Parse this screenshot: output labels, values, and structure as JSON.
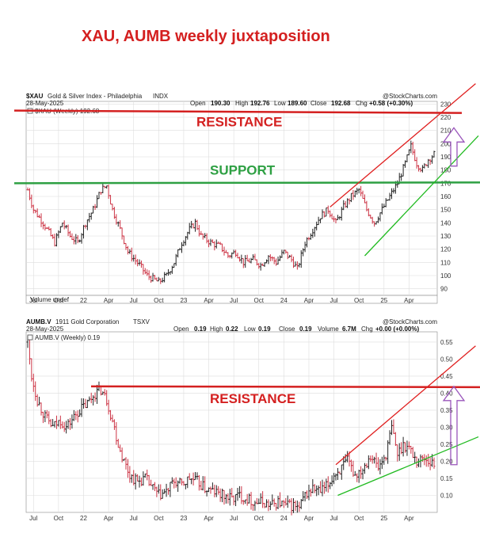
{
  "colors": {
    "red": "#d42020",
    "green": "#2ea043",
    "light_green": "#22bb22",
    "purple": "#9955bb",
    "bar_up": "#222222",
    "bar_down": "#cc3344",
    "grid": "#dddddd"
  },
  "page": {
    "title": "XAU, AUMB weekly juxtaposition"
  },
  "chart_data": [
    {
      "type": "ohlc",
      "symbol": "$XAU",
      "name": "Gold & Silver Index - Philadelphia",
      "exchange": "INDX",
      "date": "28-May-2025",
      "brand": "@StockCharts.com",
      "quote": {
        "open": "190.30",
        "high": "192.76",
        "low": "189.60",
        "close": "192.68",
        "chg": "+0.58 (+0.30%)"
      },
      "quote_labels": {
        "open": "Open",
        "high": "High",
        "low": "Low",
        "close": "Close",
        "chg": "Chg"
      },
      "legend": "$XAU (Weekly) 192.68",
      "volume_label": "Volume undef",
      "ylim": [
        85,
        232
      ],
      "yticks": [
        90,
        100,
        110,
        120,
        130,
        140,
        150,
        160,
        170,
        180,
        190,
        200,
        210,
        220,
        230
      ],
      "xticks": [
        {
          "label": "Jul",
          "week": 3
        },
        {
          "label": "Oct",
          "week": 16
        },
        {
          "label": "22",
          "week": 29
        },
        {
          "label": "Apr",
          "week": 42
        },
        {
          "label": "Jul",
          "week": 55
        },
        {
          "label": "Oct",
          "week": 68
        },
        {
          "label": "23",
          "week": 81
        },
        {
          "label": "Apr",
          "week": 94
        },
        {
          "label": "Jul",
          "week": 107
        },
        {
          "label": "Oct",
          "week": 120
        },
        {
          "label": "24",
          "week": 133
        },
        {
          "label": "Apr",
          "week": 146
        },
        {
          "label": "Jul",
          "week": 159
        },
        {
          "label": "Oct",
          "week": 172
        },
        {
          "label": "25",
          "week": 185
        },
        {
          "label": "Apr",
          "week": 198
        }
      ],
      "weeks": 212,
      "anchors": [
        [
          0,
          165
        ],
        [
          3,
          150
        ],
        [
          8,
          140
        ],
        [
          14,
          125
        ],
        [
          18,
          140
        ],
        [
          22,
          130
        ],
        [
          26,
          125
        ],
        [
          30,
          140
        ],
        [
          34,
          150
        ],
        [
          38,
          165
        ],
        [
          41,
          168
        ],
        [
          44,
          150
        ],
        [
          48,
          135
        ],
        [
          52,
          118
        ],
        [
          58,
          108
        ],
        [
          62,
          100
        ],
        [
          68,
          95
        ],
        [
          72,
          100
        ],
        [
          76,
          110
        ],
        [
          80,
          125
        ],
        [
          84,
          135
        ],
        [
          87,
          140
        ],
        [
          90,
          130
        ],
        [
          95,
          125
        ],
        [
          100,
          122
        ],
        [
          104,
          115
        ],
        [
          108,
          118
        ],
        [
          112,
          110
        ],
        [
          117,
          112
        ],
        [
          121,
          108
        ],
        [
          125,
          115
        ],
        [
          129,
          110
        ],
        [
          133,
          118
        ],
        [
          137,
          112
        ],
        [
          140,
          105
        ],
        [
          144,
          125
        ],
        [
          148,
          135
        ],
        [
          152,
          145
        ],
        [
          156,
          150
        ],
        [
          160,
          140
        ],
        [
          164,
          152
        ],
        [
          168,
          160
        ],
        [
          172,
          165
        ],
        [
          176,
          150
        ],
        [
          180,
          140
        ],
        [
          184,
          150
        ],
        [
          188,
          160
        ],
        [
          192,
          170
        ],
        [
          196,
          185
        ],
        [
          199,
          198
        ],
        [
          202,
          185
        ],
        [
          205,
          180
        ],
        [
          208,
          188
        ],
        [
          211,
          192
        ]
      ],
      "annotations": {
        "resistance": {
          "label": "RESISTANCE",
          "price": 225
        },
        "support": {
          "label": "SUPPORT",
          "price": 170
        },
        "channel_upper": [
          [
            157,
            152
          ],
          [
            212,
            220
          ]
        ],
        "channel_lower": [
          [
            175,
            115
          ],
          [
            212,
            172
          ]
        ],
        "target_arrow": {
          "from": 183,
          "to": 212
        }
      }
    },
    {
      "type": "ohlc",
      "symbol": "AUMB.V",
      "name": "1911 Gold Corporation",
      "exchange": "TSXV",
      "date": "28-May-2025",
      "brand": "@StockCharts.com",
      "quote": {
        "open": "0.19",
        "high": "0.22",
        "low": "0.19",
        "close": "0.19",
        "volume": "6.7M",
        "chg": "+0.00 (+0.00%)"
      },
      "quote_labels": {
        "open": "Open",
        "high": "High",
        "low": "Low",
        "close": "Close",
        "volume": "Volume",
        "chg": "Chg"
      },
      "legend": "AUMB.V (Weekly) 0.19",
      "ylim": [
        0.05,
        0.58
      ],
      "yticks": [
        0.1,
        0.15,
        0.2,
        0.25,
        0.3,
        0.35,
        0.4,
        0.45,
        0.5,
        0.55
      ],
      "ytick_labels": [
        "0.10",
        "0.15",
        "0.20",
        "0.25",
        "0.30",
        "0.35",
        "0.40",
        "0.45",
        "0.50",
        "0.55"
      ],
      "xticks": [
        {
          "label": "Jul",
          "week": 3
        },
        {
          "label": "Oct",
          "week": 16
        },
        {
          "label": "22",
          "week": 29
        },
        {
          "label": "Apr",
          "week": 42
        },
        {
          "label": "Jul",
          "week": 55
        },
        {
          "label": "Oct",
          "week": 68
        },
        {
          "label": "23",
          "week": 81
        },
        {
          "label": "Apr",
          "week": 94
        },
        {
          "label": "Jul",
          "week": 107
        },
        {
          "label": "Oct",
          "week": 120
        },
        {
          "label": "24",
          "week": 133
        },
        {
          "label": "Apr",
          "week": 146
        },
        {
          "label": "Jul",
          "week": 159
        },
        {
          "label": "Oct",
          "week": 172
        },
        {
          "label": "25",
          "week": 185
        },
        {
          "label": "Apr",
          "week": 198
        }
      ],
      "weeks": 212,
      "anchors": [
        [
          0,
          0.55
        ],
        [
          2,
          0.45
        ],
        [
          5,
          0.38
        ],
        [
          9,
          0.33
        ],
        [
          13,
          0.3
        ],
        [
          17,
          0.32
        ],
        [
          20,
          0.3
        ],
        [
          24,
          0.33
        ],
        [
          27,
          0.35
        ],
        [
          31,
          0.37
        ],
        [
          35,
          0.4
        ],
        [
          38,
          0.41
        ],
        [
          41,
          0.38
        ],
        [
          44,
          0.32
        ],
        [
          47,
          0.25
        ],
        [
          50,
          0.2
        ],
        [
          53,
          0.16
        ],
        [
          57,
          0.14
        ],
        [
          61,
          0.15
        ],
        [
          65,
          0.12
        ],
        [
          68,
          0.1
        ],
        [
          72,
          0.11
        ],
        [
          76,
          0.14
        ],
        [
          80,
          0.13
        ],
        [
          84,
          0.15
        ],
        [
          88,
          0.14
        ],
        [
          92,
          0.12
        ],
        [
          97,
          0.11
        ],
        [
          101,
          0.1
        ],
        [
          106,
          0.09
        ],
        [
          110,
          0.1
        ],
        [
          114,
          0.09
        ],
        [
          118,
          0.08
        ],
        [
          122,
          0.08
        ],
        [
          126,
          0.07
        ],
        [
          130,
          0.08
        ],
        [
          134,
          0.07
        ],
        [
          138,
          0.07
        ],
        [
          141,
          0.06
        ],
        [
          144,
          0.1
        ],
        [
          148,
          0.12
        ],
        [
          152,
          0.11
        ],
        [
          156,
          0.13
        ],
        [
          159,
          0.16
        ],
        [
          163,
          0.18
        ],
        [
          166,
          0.2
        ],
        [
          170,
          0.16
        ],
        [
          174,
          0.18
        ],
        [
          178,
          0.22
        ],
        [
          182,
          0.18
        ],
        [
          186,
          0.22
        ],
        [
          189,
          0.3
        ],
        [
          192,
          0.22
        ],
        [
          195,
          0.25
        ],
        [
          198,
          0.24
        ],
        [
          202,
          0.2
        ],
        [
          206,
          0.21
        ],
        [
          211,
          0.19
        ]
      ],
      "annotations": {
        "resistance": {
          "label": "RESISTANCE",
          "price": 0.42
        },
        "channel_upper": [
          [
            160,
            0.19
          ],
          [
            212,
            0.44
          ]
        ],
        "channel_lower": [
          [
            161,
            0.1
          ],
          [
            212,
            0.22
          ]
        ],
        "target_arrow": {
          "from": 0.19,
          "to": 0.42
        }
      }
    }
  ]
}
